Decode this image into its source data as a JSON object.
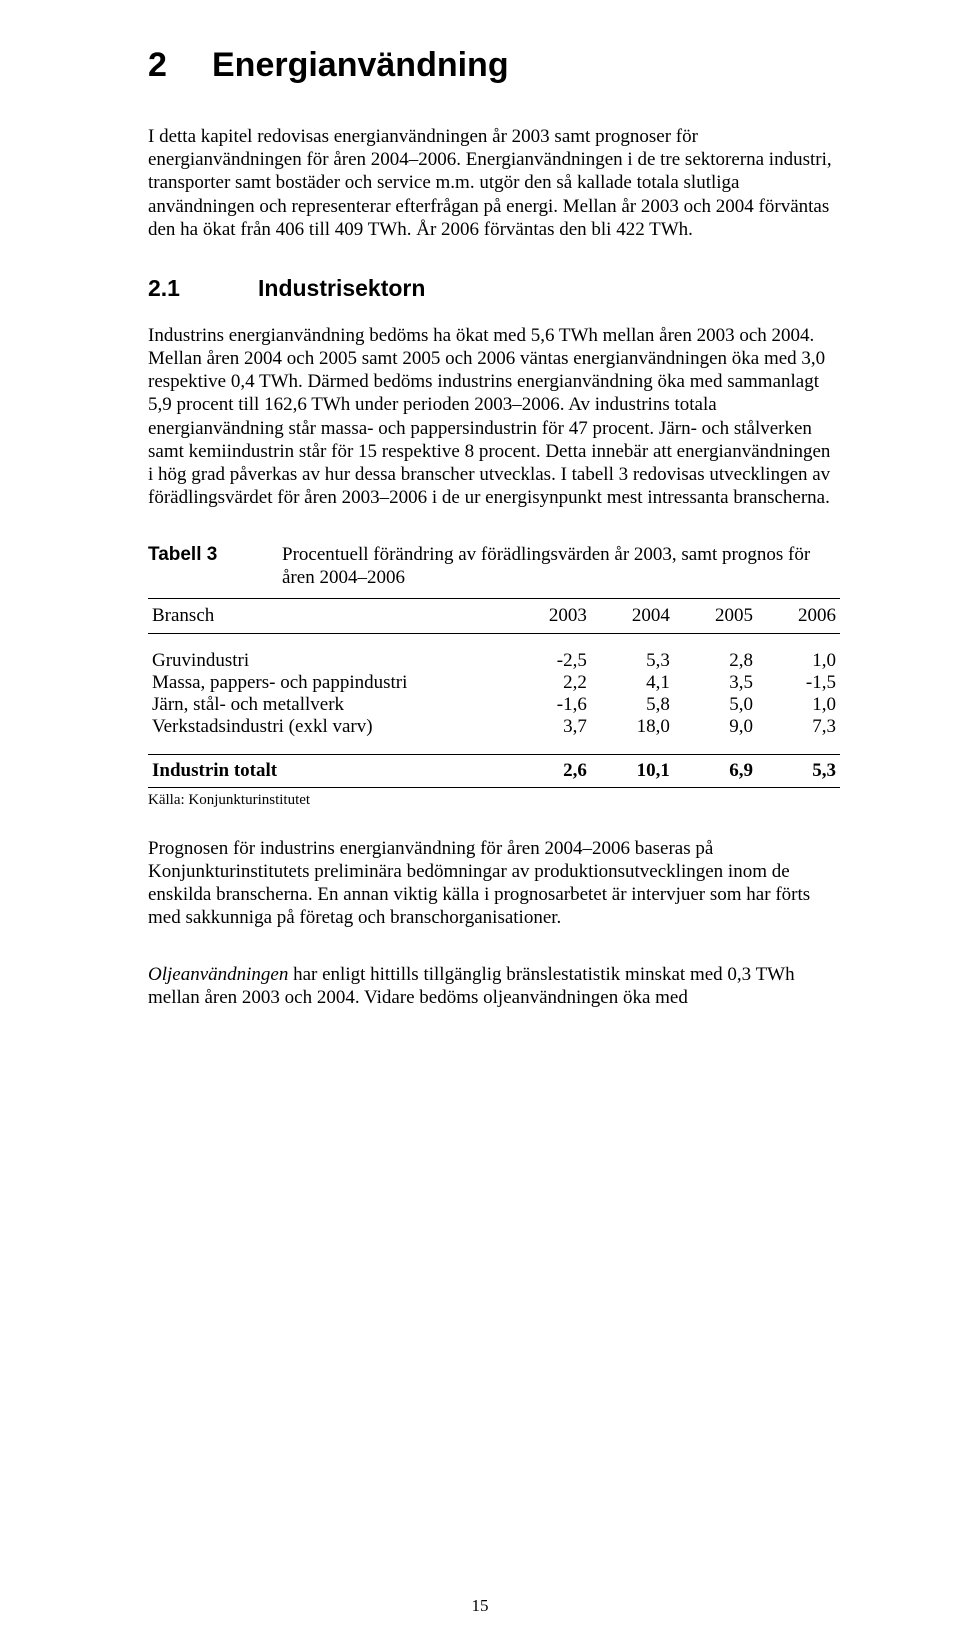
{
  "heading1": {
    "num": "2",
    "title": "Energianvändning"
  },
  "para1": "I detta kapitel redovisas energianvändningen år 2003 samt prognoser för energianvändningen för åren 2004–2006. Energianvändningen i de tre sektorerna industri, transporter samt bostäder och service m.m. utgör den så kallade totala slutliga användningen och representerar efterfrågan på energi. Mellan år 2003 och 2004 förväntas den ha ökat från 406 till 409 TWh. År 2006 förväntas den bli 422 TWh.",
  "heading2": {
    "num": "2.1",
    "title": "Industrisektorn"
  },
  "para2": "Industrins energianvändning bedöms ha ökat med 5,6 TWh mellan åren 2003 och 2004. Mellan åren 2004 och 2005 samt 2005 och 2006 väntas energianvändningen öka med 3,0 respektive 0,4 TWh. Därmed bedöms industrins energianvändning öka med sammanlagt 5,9 procent till 162,6 TWh under perioden 2003–2006. Av industrins totala energianvändning står massa- och pappersindustrin för 47 procent. Järn- och stålverken samt kemiindustrin står för 15 respektive 8 procent. Detta innebär att energianvändningen i hög grad påverkas av hur dessa branscher utvecklas. I tabell 3 redovisas utvecklingen av förädlingsvärdet för åren 2003–2006 i de ur energisynpunkt mest intressanta branscherna.",
  "table": {
    "caption_label": "Tabell 3",
    "caption_text": "Procentuell förändring av förädlingsvärden år 2003, samt prognos för åren 2004–2006",
    "columns": [
      "Bransch",
      "2003",
      "2004",
      "2005",
      "2006"
    ],
    "rows": [
      {
        "label": "Gruvindustri",
        "v": [
          "-2,5",
          "5,3",
          "2,8",
          "1,0"
        ]
      },
      {
        "label": "Massa, pappers- och pappindustri",
        "v": [
          "2,2",
          "4,1",
          "3,5",
          "-1,5"
        ]
      },
      {
        "label": "Järn, stål- och metallverk",
        "v": [
          "-1,6",
          "5,8",
          "5,0",
          "1,0"
        ]
      },
      {
        "label": "Verkstadsindustri (exkl varv)",
        "v": [
          "3,7",
          "18,0",
          "9,0",
          "7,3"
        ]
      }
    ],
    "total": {
      "label": "Industrin totalt",
      "v": [
        "2,6",
        "10,1",
        "6,9",
        "5,3"
      ]
    },
    "source": "Källa: Konjunkturinstitutet",
    "col_widths": [
      "52%",
      "12%",
      "12%",
      "12%",
      "12%"
    ]
  },
  "para3": "Prognosen för industrins energianvändning för åren 2004–2006 baseras på Konjunkturinstitutets preliminära bedömningar av produktionsutvecklingen inom de enskilda branscherna. En annan viktig källa i prognosarbetet är intervjuer som har förts med sakkunniga på företag och branschorganisationer.",
  "para4_lead": "Oljeanvändningen",
  "para4_rest": " har enligt hittills tillgänglig bränslestatistik minskat med 0,3 TWh mellan åren 2003 och 2004. Vidare bedöms oljeanvändningen öka med",
  "page_number": "15"
}
